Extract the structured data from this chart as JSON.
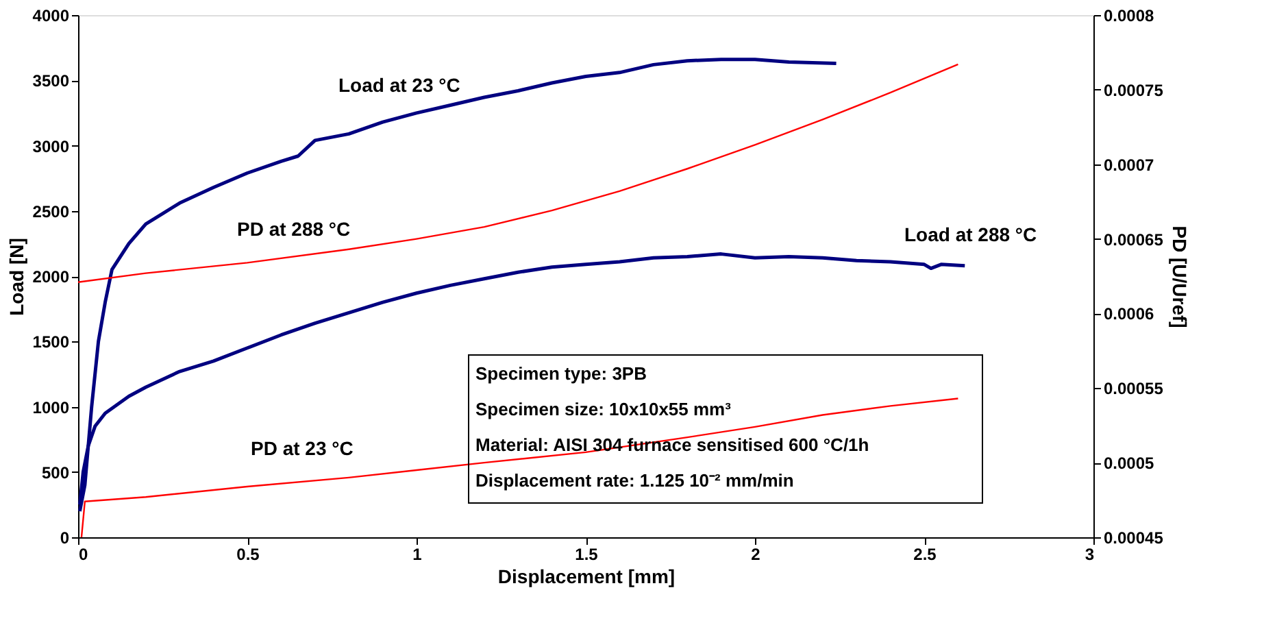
{
  "chart_data": {
    "type": "line",
    "xlabel": "Displacement [mm]",
    "ylabel": "Load [N]",
    "y2label": "PD [U/Uref]",
    "xlim": [
      0,
      3
    ],
    "xticks": [
      0,
      0.5,
      1,
      1.5,
      2,
      2.5,
      3
    ],
    "ylim": [
      0,
      4000
    ],
    "yticks": [
      0,
      500,
      1000,
      1500,
      2000,
      2500,
      3000,
      3500,
      4000
    ],
    "y2lim": [
      0.00045,
      0.0008
    ],
    "y2ticks": [
      0.00045,
      0.0005,
      0.00055,
      0.0006,
      0.00065,
      0.0007,
      0.00075,
      0.0008
    ],
    "grid": false,
    "marker": "none",
    "line_style": "solid",
    "series": [
      {
        "color": "#000080",
        "x": [
          0.005,
          0.02,
          0.04,
          0.06,
          0.08,
          0.1,
          0.15,
          0.2,
          0.25,
          0.3,
          0.4,
          0.5,
          0.6,
          0.65,
          0.7,
          0.8,
          0.9,
          1.0,
          1.1,
          1.2,
          1.3,
          1.4,
          1.5,
          1.6,
          1.7,
          1.8,
          1.9,
          2.0,
          2.1,
          2.24
        ],
        "values": [
          200,
          400,
          1000,
          1500,
          1800,
          2050,
          2250,
          2400,
          2480,
          2560,
          2680,
          2790,
          2880,
          2920,
          3040,
          3090,
          3180,
          3250,
          3310,
          3370,
          3420,
          3480,
          3530,
          3560,
          3620,
          3650,
          3660,
          3660,
          3640,
          3630
        ]
      },
      {
        "color": "#000080",
        "x": [
          0.005,
          0.015,
          0.03,
          0.05,
          0.08,
          0.15,
          0.2,
          0.3,
          0.4,
          0.5,
          0.6,
          0.7,
          0.8,
          0.9,
          1.0,
          1.1,
          1.2,
          1.3,
          1.4,
          1.5,
          1.6,
          1.7,
          1.8,
          1.9,
          2.0,
          2.1,
          2.2,
          2.3,
          2.4,
          2.5,
          2.52,
          2.55,
          2.62
        ],
        "values": [
          250,
          500,
          700,
          850,
          950,
          1080,
          1150,
          1270,
          1350,
          1450,
          1550,
          1640,
          1720,
          1800,
          1870,
          1930,
          1980,
          2030,
          2070,
          2090,
          2110,
          2140,
          2150,
          2170,
          2140,
          2150,
          2140,
          2120,
          2110,
          2090,
          2060,
          2090,
          2080
        ]
      },
      {
        "color": "#ff0000",
        "axis": "y2",
        "x": [
          0,
          0.2,
          0.5,
          0.8,
          1.0,
          1.2,
          1.4,
          1.6,
          1.8,
          2.0,
          2.2,
          2.4,
          2.6
        ],
        "values": [
          0.000621,
          0.000627,
          0.000634,
          0.000643,
          0.00065,
          0.000658,
          0.000669,
          0.000682,
          0.000697,
          0.000713,
          0.00073,
          0.000748,
          0.000767
        ]
      },
      {
        "color": "#ff0000",
        "axis": "y2",
        "x": [
          0.01,
          0.02,
          0.2,
          0.5,
          0.8,
          1.0,
          1.2,
          1.5,
          1.8,
          2.0,
          2.2,
          2.4,
          2.6
        ],
        "values": [
          0.00045,
          0.000474,
          0.000477,
          0.000484,
          0.00049,
          0.000495,
          0.0005,
          0.000507,
          0.000517,
          0.000524,
          0.000532,
          0.000538,
          0.000543
        ]
      }
    ],
    "annotations": [
      "Load at 23 °C",
      "PD at 288 °C",
      "Load at 288 °C",
      "PD at 23 °C",
      "Specimen type: 3PB",
      "Specimen size: 10x10x55 mm³",
      "Material: AISI 304 furnace sensitised 600 °C/1h",
      "Displacement rate: 1.125 10⁻² mm/min"
    ]
  }
}
